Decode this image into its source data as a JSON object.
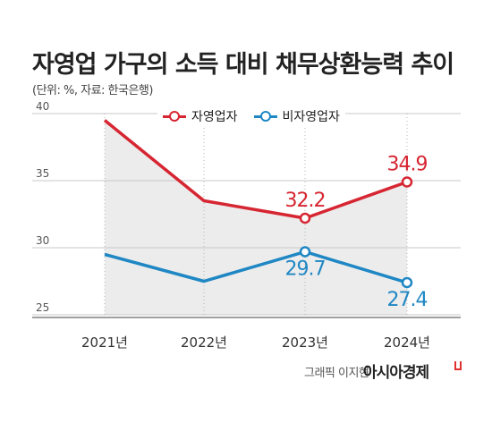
{
  "title": "자영업 가구의 소득 대비 채무상환능력 추이",
  "subtitle": "(단위: %, 자료: 한국은행)",
  "credit": "그래픽 이지현",
  "brand": "아시아경제",
  "colors": {
    "self_employed": "#d62632",
    "non_self_employed": "#1f87c4",
    "area": "#ececec",
    "grid": "#c9c9c9"
  },
  "chart_data": {
    "type": "line",
    "categories": [
      "2021년",
      "2022년",
      "2023년",
      "2024년"
    ],
    "ylim": [
      25,
      40
    ],
    "yticks": [
      "40",
      "35",
      "30",
      "25"
    ],
    "series": [
      {
        "name": "자영업자",
        "values": [
          39.5,
          33.5,
          32.2,
          34.9
        ],
        "labels": [
          "",
          "",
          "32.2",
          "34.9"
        ]
      },
      {
        "name": "비자영업자",
        "values": [
          29.5,
          27.5,
          29.7,
          27.4
        ],
        "labels": [
          "",
          "",
          "29.7",
          "27.4"
        ]
      }
    ]
  }
}
